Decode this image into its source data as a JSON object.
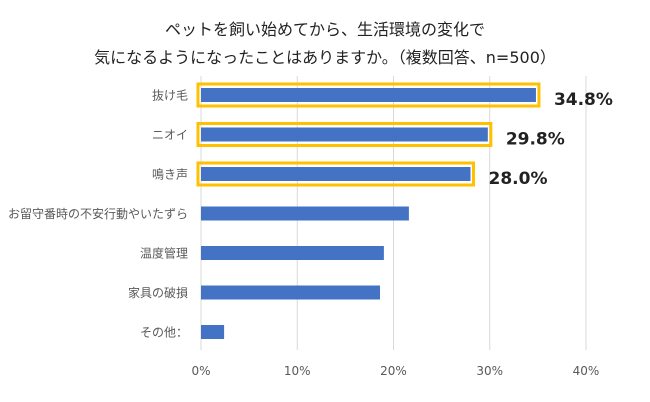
{
  "chart_data": {
    "type": "bar",
    "orientation": "horizontal",
    "title_lines": [
      "ペットを飼い始めてから、生活環境の変化で",
      "気になるようになったことはありますか。（複数回答、n=500）"
    ],
    "categories": [
      "抜け毛",
      "ニオイ",
      "鳴き声",
      "お留守番時の不安行動やいたずら",
      "温度管理",
      "家具の破損",
      "その他："
    ],
    "values": [
      34.8,
      29.8,
      28.0,
      21.6,
      19.0,
      18.6,
      2.4
    ],
    "value_labels": [
      "34.8%",
      "29.8%",
      "28.0%",
      "",
      "",
      "",
      ""
    ],
    "highlighted": [
      true,
      true,
      true,
      false,
      false,
      false,
      false
    ],
    "xlim": [
      0,
      40
    ],
    "x_ticks": [
      "0%",
      "10%",
      "20%",
      "30%",
      "40%"
    ],
    "grid": true,
    "bar_color": "#4472C4",
    "highlight_color": "#FFC000",
    "grid_color": "#D9D9D9"
  }
}
